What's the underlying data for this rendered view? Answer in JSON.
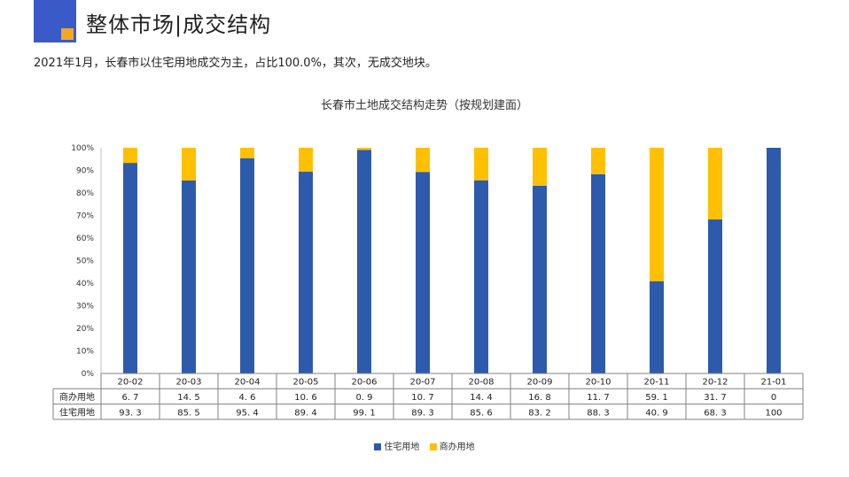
{
  "header": {
    "title": "整体市场|成交结构"
  },
  "summary": "2021年1月，长春市以住宅用地成交为主，占比100.0%，其次，无成交地块。",
  "colors": {
    "residential": "#2e5aac",
    "commercial": "#ffc000",
    "logo": "#3a5bc7",
    "logo_accent": "#f5a623"
  },
  "chart_data": {
    "type": "bar",
    "stacked": true,
    "title": "长春市土地成交结构走势（按规划建面）",
    "categories": [
      "20-02",
      "20-03",
      "20-04",
      "20-05",
      "20-06",
      "20-07",
      "20-08",
      "20-09",
      "20-10",
      "20-11",
      "20-12",
      "21-01"
    ],
    "y_ticks": [
      "0%",
      "10%",
      "20%",
      "30%",
      "40%",
      "50%",
      "60%",
      "70%",
      "80%",
      "90%",
      "100%"
    ],
    "ylim": [
      0,
      100
    ],
    "series": [
      {
        "name": "住宅用地",
        "color": "#2e5aac",
        "values": [
          93.3,
          85.5,
          95.4,
          89.4,
          99.1,
          89.3,
          85.6,
          83.2,
          88.3,
          40.9,
          68.3,
          100
        ],
        "labels": [
          "93. 3",
          "85. 5",
          "95. 4",
          "89. 4",
          "99. 1",
          "89. 3",
          "85. 6",
          "83. 2",
          "88. 3",
          "40. 9",
          "68. 3",
          "100"
        ]
      },
      {
        "name": "商办用地",
        "color": "#ffc000",
        "values": [
          6.7,
          14.5,
          4.6,
          10.6,
          0.9,
          10.7,
          14.4,
          16.8,
          11.7,
          59.1,
          31.7,
          0
        ],
        "labels": [
          "6. 7",
          "14. 5",
          "4. 6",
          "10. 6",
          "0. 9",
          "10. 7",
          "14. 4",
          "16. 8",
          "11. 7",
          "59. 1",
          "31. 7",
          "0"
        ]
      }
    ],
    "table_rows": [
      "商办用地",
      "住宅用地"
    ],
    "legend": [
      "住宅用地",
      "商办用地"
    ],
    "legend_position": "bottom"
  }
}
